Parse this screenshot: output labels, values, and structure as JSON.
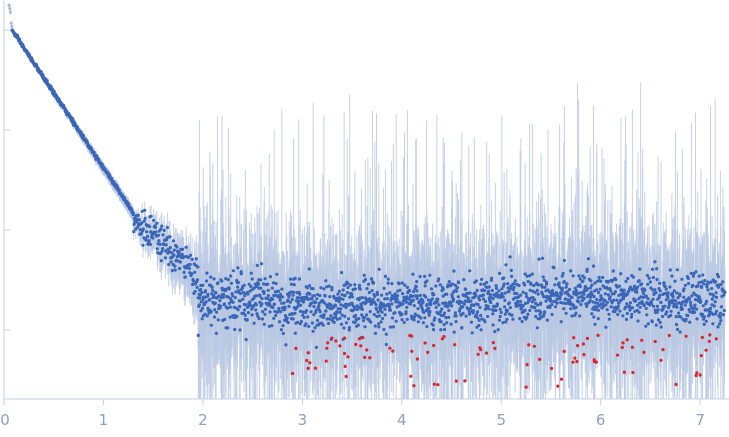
{
  "chart_data": {
    "type": "scatter",
    "title": "",
    "xlabel": "",
    "ylabel": "",
    "xlim": [
      0,
      7.25
    ],
    "ylog": true,
    "ytick_count": 4,
    "x_ticks": [
      "0",
      "1",
      "2",
      "3",
      "4",
      "5",
      "6",
      "7"
    ],
    "grid": false,
    "legend": "none",
    "colors": {
      "points": "#3a66b8",
      "outliers": "#d9262b",
      "errorbars": "#b9c8e3",
      "early_points": "#a9b9dd",
      "axis": "#c3cfe6",
      "tick_labels": "#8da0c8"
    },
    "series": [
      {
        "segments": [
          {
            "x_start": 0.0,
            "x_end": 0.08,
            "y_start": 5.0,
            "y_end": 1.05,
            "count": 12,
            "spread": 0.08,
            "style": "early"
          },
          {
            "x_start": 0.08,
            "x_end": 1.3,
            "y_start": 1.0,
            "y_end": 0.015,
            "count": 380,
            "spread": 0.04,
            "style": "linear-decay"
          },
          {
            "x_start": 1.3,
            "x_end": 1.95,
            "y_start": 0.013,
            "y_end": 0.0035,
            "count": 160,
            "spread": 0.18,
            "style": "knee"
          },
          {
            "x_start": 1.95,
            "x_end": 7.25,
            "y_level": 0.002,
            "count": 1650,
            "spread": 0.55,
            "style": "plateau"
          }
        ],
        "outlier_count": 95
      }
    ]
  }
}
